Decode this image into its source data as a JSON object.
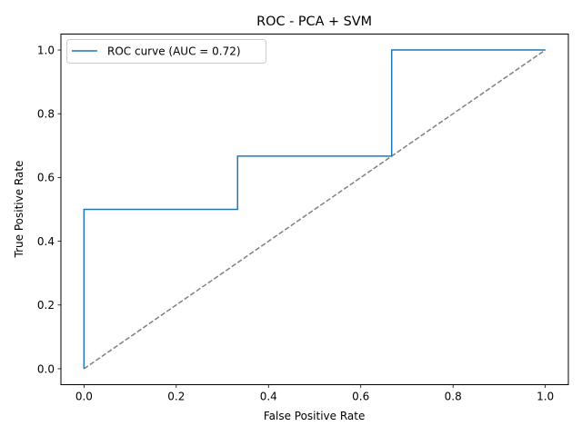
{
  "chart_data": {
    "type": "line",
    "title": "ROC - PCA + SVM",
    "xlabel": "False Positive Rate",
    "ylabel": "True Positive Rate",
    "xlim": [
      -0.05,
      1.05
    ],
    "ylim": [
      -0.05,
      1.05
    ],
    "xticks": [
      0.0,
      0.2,
      0.4,
      0.6,
      0.8,
      1.0
    ],
    "yticks": [
      0.0,
      0.2,
      0.4,
      0.6,
      0.8,
      1.0
    ],
    "xtick_labels": [
      "0.0",
      "0.2",
      "0.4",
      "0.6",
      "0.8",
      "1.0"
    ],
    "ytick_labels": [
      "0.0",
      "0.2",
      "0.4",
      "0.6",
      "0.8",
      "1.0"
    ],
    "grid": false,
    "legend_position": "top-left",
    "series": [
      {
        "name": "ROC curve (AUC = 0.72)",
        "color": "#1f77b4",
        "style": "solid",
        "x": [
          0.0,
          0.0,
          0.0,
          0.333,
          0.333,
          0.667,
          0.667,
          1.0
        ],
        "y": [
          0.0,
          0.0,
          0.5,
          0.5,
          0.667,
          0.667,
          1.0,
          1.0
        ]
      },
      {
        "name": "",
        "color": "#808080",
        "style": "dashed",
        "x": [
          0.0,
          1.0
        ],
        "y": [
          0.0,
          1.0
        ]
      }
    ]
  }
}
